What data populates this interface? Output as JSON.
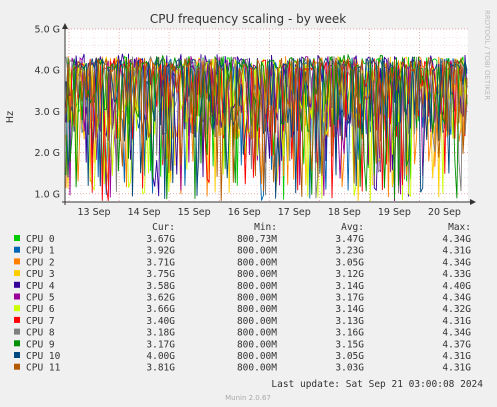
{
  "chart_data": {
    "type": "line",
    "title": "CPU frequency scaling - by week",
    "ylabel": "Hz",
    "ylim": [
      0.8,
      5.0
    ],
    "y_unit": "G",
    "y_ticks": [
      "1.0 G",
      "2.0 G",
      "3.0 G",
      "4.0 G",
      "5.0 G"
    ],
    "x_ticks": [
      "13 Sep",
      "14 Sep",
      "15 Sep",
      "16 Sep",
      "17 Sep",
      "18 Sep",
      "19 Sep",
      "20 Sep"
    ],
    "grid": true,
    "side_label": "RRDTOOL / TOBI OETIKER",
    "legend_headers": {
      "cur": "Cur:",
      "min": "Min:",
      "avg": "Avg:",
      "max": "Max:"
    },
    "series": [
      {
        "name": "CPU 0",
        "color": "#00cc00",
        "cur": "3.67G",
        "min": "800.73M",
        "avg": "3.47G",
        "max": "4.34G"
      },
      {
        "name": "CPU 1",
        "color": "#0066b3",
        "cur": "3.92G",
        "min": "800.00M",
        "avg": "3.23G",
        "max": "4.31G"
      },
      {
        "name": "CPU 2",
        "color": "#ff8000",
        "cur": "3.71G",
        "min": "800.00M",
        "avg": "3.05G",
        "max": "4.34G"
      },
      {
        "name": "CPU 3",
        "color": "#ffcc00",
        "cur": "3.75G",
        "min": "800.00M",
        "avg": "3.12G",
        "max": "4.33G"
      },
      {
        "name": "CPU 4",
        "color": "#330099",
        "cur": "3.58G",
        "min": "800.00M",
        "avg": "3.14G",
        "max": "4.40G"
      },
      {
        "name": "CPU 5",
        "color": "#990099",
        "cur": "3.62G",
        "min": "800.00M",
        "avg": "3.17G",
        "max": "4.34G"
      },
      {
        "name": "CPU 6",
        "color": "#ccff00",
        "cur": "3.66G",
        "min": "800.00M",
        "avg": "3.14G",
        "max": "4.32G"
      },
      {
        "name": "CPU 7",
        "color": "#ff0000",
        "cur": "3.40G",
        "min": "800.00M",
        "avg": "3.13G",
        "max": "4.31G"
      },
      {
        "name": "CPU 8",
        "color": "#808080",
        "cur": "3.18G",
        "min": "800.00M",
        "avg": "3.16G",
        "max": "4.34G"
      },
      {
        "name": "CPU 9",
        "color": "#008f00",
        "cur": "3.17G",
        "min": "800.00M",
        "avg": "3.15G",
        "max": "4.37G"
      },
      {
        "name": "CPU 10",
        "color": "#00487d",
        "cur": "4.00G",
        "min": "800.00M",
        "avg": "3.05G",
        "max": "4.31G"
      },
      {
        "name": "CPU 11",
        "color": "#b35a00",
        "cur": "3.81G",
        "min": "800.00M",
        "avg": "3.03G",
        "max": "4.31G"
      }
    ],
    "last_update": "Last update: Sat Sep 21 03:00:08 2024",
    "footer": "Munin 2.0.67"
  }
}
